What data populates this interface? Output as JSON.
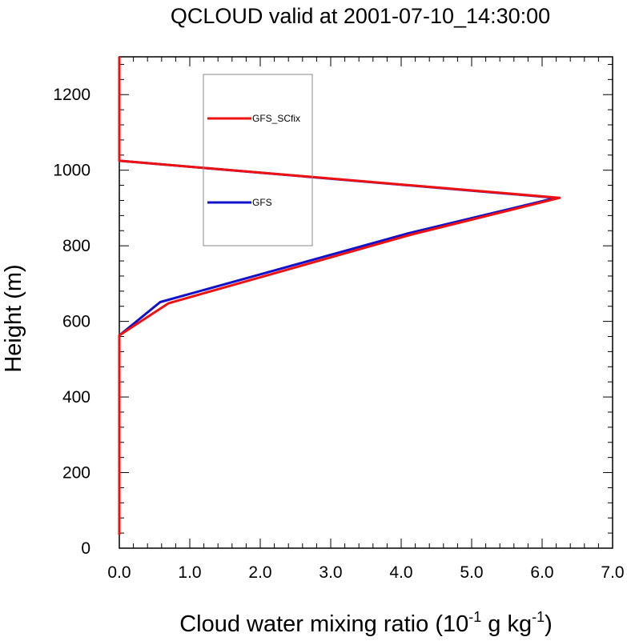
{
  "chart_data": {
    "type": "line",
    "title": "QCLOUD valid at 2001-07-10_14:30:00",
    "xlabel": {
      "main": "Cloud water mixing ratio (10",
      "exp1": "-1",
      "mid": " g kg",
      "exp2": "-1",
      "end": ")"
    },
    "ylabel": "Height (m)",
    "xlim": [
      0,
      7
    ],
    "ylim": [
      0,
      1300
    ],
    "x_ticks": [
      0,
      1,
      2,
      3,
      4,
      5,
      6,
      7
    ],
    "x_tick_labels": [
      "0.0",
      "1.0",
      "2.0",
      "3.0",
      "4.0",
      "5.0",
      "6.0",
      "7.0"
    ],
    "y_ticks": [
      0,
      200,
      400,
      600,
      800,
      1000,
      1200
    ],
    "y_tick_labels": [
      "0",
      "200",
      "400",
      "600",
      "800",
      "1000",
      "1200"
    ],
    "legend_position": "top-left",
    "series": [
      {
        "name": "GFS_SCfix",
        "color": "#ee1111",
        "points": [
          [
            0,
            35
          ],
          [
            0,
            563
          ],
          [
            0.7,
            648
          ],
          [
            4.15,
            830
          ],
          [
            6.25,
            927
          ],
          [
            0,
            1025
          ],
          [
            0,
            1300
          ]
        ]
      },
      {
        "name": "GFS",
        "color": "#1111cc",
        "points": [
          [
            0,
            35
          ],
          [
            0,
            563
          ],
          [
            0.58,
            651
          ],
          [
            4.1,
            833
          ],
          [
            6.2,
            927
          ],
          [
            0,
            1025
          ],
          [
            0,
            1300
          ]
        ]
      }
    ]
  }
}
